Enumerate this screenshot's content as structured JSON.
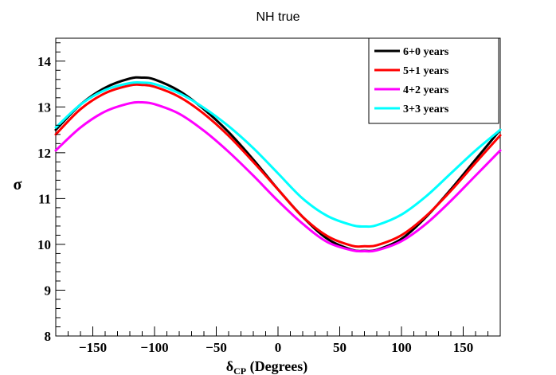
{
  "chart_data": {
    "type": "line",
    "title": "NH true",
    "xlabel": "δ_CP (Degrees)",
    "xlabel_main": "δ",
    "xlabel_sub": "CP",
    "xlabel_rest": " (Degrees)",
    "ylabel": "σ",
    "xlim": [
      -180,
      180
    ],
    "ylim": [
      8,
      14.5
    ],
    "x_ticks": [
      -150,
      -100,
      -50,
      0,
      50,
      100,
      150
    ],
    "x_tick_labels": [
      "−150",
      "−100",
      "−50",
      "0",
      "50",
      "100",
      "150"
    ],
    "y_ticks": [
      8,
      9,
      10,
      11,
      12,
      13,
      14
    ],
    "y_tick_labels": [
      "8",
      "9",
      "10",
      "11",
      "12",
      "13",
      "14"
    ],
    "legend_position": "top-right",
    "series": [
      {
        "name": "6+0 years",
        "color": "#000000",
        "x": [
          -180,
          -160,
          -140,
          -120,
          -110,
          -100,
          -80,
          -60,
          -40,
          -20,
          0,
          20,
          40,
          60,
          70,
          80,
          100,
          120,
          140,
          160,
          180
        ],
        "y": [
          12.5,
          13.05,
          13.42,
          13.62,
          13.64,
          13.6,
          13.35,
          12.95,
          12.45,
          11.85,
          11.2,
          10.6,
          10.12,
          9.88,
          9.86,
          9.88,
          10.12,
          10.6,
          11.2,
          11.85,
          12.5
        ]
      },
      {
        "name": "5+1 years",
        "color": "#ff0000",
        "x": [
          -180,
          -160,
          -140,
          -120,
          -110,
          -100,
          -80,
          -60,
          -40,
          -20,
          0,
          20,
          40,
          60,
          70,
          80,
          100,
          120,
          140,
          160,
          180
        ],
        "y": [
          12.4,
          12.95,
          13.3,
          13.47,
          13.48,
          13.44,
          13.22,
          12.85,
          12.37,
          11.8,
          11.2,
          10.6,
          10.18,
          9.97,
          9.96,
          9.98,
          10.2,
          10.62,
          11.17,
          11.78,
          12.38
        ]
      },
      {
        "name": "4+2 years",
        "color": "#ff00ff",
        "x": [
          -180,
          -160,
          -140,
          -120,
          -110,
          -100,
          -80,
          -60,
          -40,
          -20,
          0,
          20,
          40,
          60,
          70,
          80,
          100,
          120,
          140,
          160,
          180
        ],
        "y": [
          12.05,
          12.55,
          12.9,
          13.08,
          13.1,
          13.06,
          12.85,
          12.48,
          12.02,
          11.5,
          10.95,
          10.45,
          10.05,
          9.87,
          9.85,
          9.87,
          10.07,
          10.45,
          10.95,
          11.5,
          12.05
        ]
      },
      {
        "name": "3+3 years",
        "color": "#00ffff",
        "x": [
          -180,
          -160,
          -140,
          -120,
          -110,
          -100,
          -80,
          -60,
          -40,
          -20,
          0,
          20,
          40,
          60,
          70,
          80,
          100,
          120,
          140,
          160,
          180
        ],
        "y": [
          12.55,
          13.05,
          13.37,
          13.52,
          13.53,
          13.5,
          13.3,
          12.98,
          12.58,
          12.1,
          11.55,
          11.0,
          10.62,
          10.42,
          10.39,
          10.42,
          10.65,
          11.05,
          11.55,
          12.05,
          12.5
        ]
      }
    ]
  }
}
